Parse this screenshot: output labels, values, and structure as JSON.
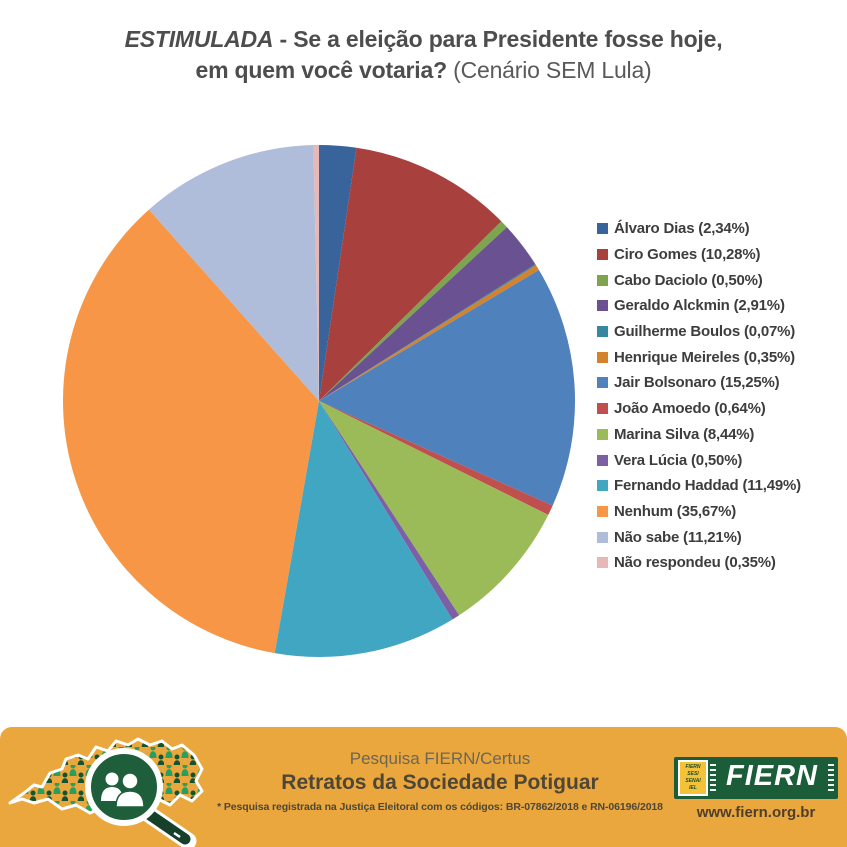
{
  "title": {
    "emphasis": "ESTIMULADA",
    "line1_rest": " - Se a eleição para Presidente fosse hoje,",
    "line2_bold": "em quem  você votaria?",
    "line2_regular": " (Cenário SEM Lula)"
  },
  "chart_data": {
    "type": "pie",
    "title": "ESTIMULADA - Se a eleição para Presidente fosse hoje, em quem você votaria? (Cenário SEM Lula)",
    "start_angle_deg": 0,
    "direction": "clockwise",
    "legend_position": "right",
    "value_format": "percent_br_comma",
    "slices": [
      {
        "label": "Álvaro Dias",
        "value": 2.34,
        "value_label": "2,34%",
        "color": "#38649B"
      },
      {
        "label": "Ciro Gomes",
        "value": 10.28,
        "value_label": "10,28%",
        "color": "#A8403E"
      },
      {
        "label": "Cabo Daciolo",
        "value": 0.5,
        "value_label": "0,50%",
        "color": "#7FA44F"
      },
      {
        "label": "Geraldo Alckmin",
        "value": 2.91,
        "value_label": "2,91%",
        "color": "#6A5292"
      },
      {
        "label": "Guilherme Boulos",
        "value": 0.07,
        "value_label": "0,07%",
        "color": "#35889E"
      },
      {
        "label": "Henrique Meireles",
        "value": 0.35,
        "value_label": "0,35%",
        "color": "#D5822D"
      },
      {
        "label": "Jair Bolsonaro",
        "value": 15.25,
        "value_label": "15,25%",
        "color": "#4F81BD"
      },
      {
        "label": "João Amoedo",
        "value": 0.64,
        "value_label": "0,64%",
        "color": "#C0504D"
      },
      {
        "label": "Marina Silva",
        "value": 8.44,
        "value_label": "8,44%",
        "color": "#9BBB59"
      },
      {
        "label": "Vera Lúcia",
        "value": 0.5,
        "value_label": "0,50%",
        "color": "#7D5FA5"
      },
      {
        "label": "Fernando Haddad",
        "value": 11.49,
        "value_label": "11,49%",
        "color": "#41A6C1"
      },
      {
        "label": "Nenhum",
        "value": 35.67,
        "value_label": "35,67%",
        "color": "#F79646"
      },
      {
        "label": "Não sabe",
        "value": 11.21,
        "value_label": "11,21%",
        "color": "#AFBDDB"
      },
      {
        "label": "Não respondeu",
        "value": 0.35,
        "value_label": "0,35%",
        "color": "#E6B9B8"
      }
    ]
  },
  "footer": {
    "line1": "Pesquisa FIERN/Certus",
    "line2": "Retratos da Sociedade Potiguar",
    "line3": "* Pesquisa registrada na Justiça Eleitoral com os códigos: BR-07862/2018 e RN-06196/2018",
    "fiern_logo_text": "FIERN",
    "fiern_sublabels": [
      "FIERN",
      "SESI",
      "SENAI",
      "IEL"
    ],
    "website": "www.fiern.org.br",
    "background_color": "#E9A73E",
    "logo_green": "#1B5C39"
  }
}
